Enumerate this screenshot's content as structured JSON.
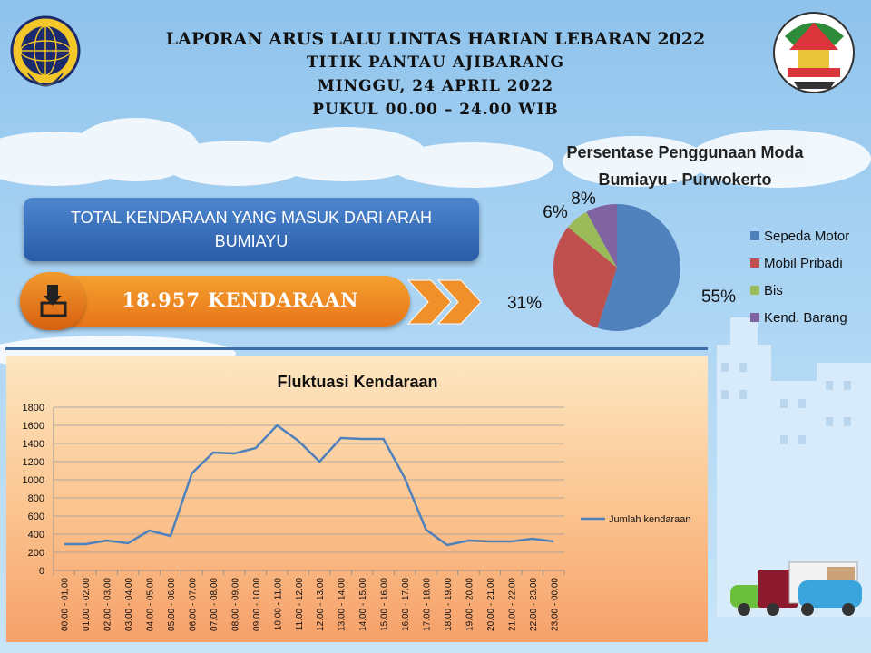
{
  "header": {
    "line1": "LAPORAN ARUS LALU LINTAS HARIAN LEBARAN 2022",
    "line2": "TITIK PANTAU AJIBARANG",
    "line3": "MINGGU,  24 APRIL 2022",
    "line4": "PUKUL  00.00 – 24.00 WIB"
  },
  "summary": {
    "title": "TOTAL KENDARAAN YANG MASUK DARI ARAH BUMIAYU",
    "count": "18.957 KENDARAAN"
  },
  "icons": {
    "left_logo": "dishub-logo",
    "right_logo": "banyumas-seal",
    "download": "download-tray-icon"
  },
  "chart_data": [
    {
      "type": "pie",
      "title": "Persentase Penggunaan Moda Bumiayu - Purwokerto",
      "labels": [
        "Sepeda Motor",
        "Mobil Pribadi",
        "Bis",
        "Kend. Barang"
      ],
      "values": [
        55,
        31,
        6,
        8
      ],
      "value_labels": [
        "55%",
        "31%",
        "6%",
        "8%"
      ],
      "colors": [
        "#4f81bd",
        "#c0504d",
        "#9bbb59",
        "#8064a2"
      ],
      "legend": "right"
    },
    {
      "type": "line",
      "title": "Fluktuasi Kendaraan",
      "categories": [
        "00.00 - 01.00",
        "01.00 - 02.00",
        "02.00 - 03.00",
        "03.00 - 04.00",
        "04.00 - 05.00",
        "05.00 - 06.00",
        "06.00 - 07.00",
        "07.00 - 08.00",
        "08.00 - 09.00",
        "09.00 - 10.00",
        "10.00 - 11.00",
        "11.00 - 12.00",
        "12.00 - 13.00",
        "13.00 - 14.00",
        "14.00 - 15.00",
        "15.00 - 16.00",
        "16.00 - 17.00",
        "17.00 - 18.00",
        "18.00 - 19.00",
        "19.00 - 20.00",
        "20.00 - 21.00",
        "21.00 - 22.00",
        "22.00 - 23.00",
        "23.00 - 00.00"
      ],
      "series": [
        {
          "name": "Jumlah kendaraan",
          "values": [
            290,
            290,
            330,
            300,
            440,
            380,
            1070,
            1300,
            1290,
            1350,
            1600,
            1430,
            1200,
            1460,
            1450,
            1450,
            1020,
            450,
            280,
            330,
            320,
            320,
            350,
            320
          ],
          "color": "#4f81bd"
        }
      ],
      "ylim": [
        0,
        1800
      ],
      "yticks": [
        0,
        200,
        400,
        600,
        800,
        1000,
        1200,
        1400,
        1600,
        1800
      ],
      "grid": true,
      "legend": "right"
    }
  ]
}
